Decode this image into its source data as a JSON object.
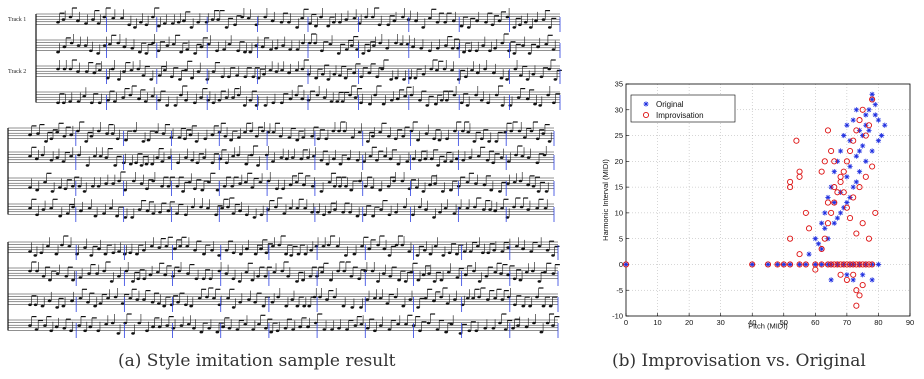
{
  "figure_a": {
    "caption": "(a) Style imitation sample result",
    "track_labels": [
      "Track 1",
      "Track 2"
    ]
  },
  "figure_b": {
    "caption": "(b) Improvisation vs. Original"
  },
  "chart_data": {
    "type": "scatter",
    "xlabel": "Pitch (MIDI)",
    "ylabel": "Harmonic Interval (MIDI)",
    "xlim": [
      0,
      90
    ],
    "ylim": [
      -10,
      35
    ],
    "xticks": [
      0,
      10,
      20,
      30,
      40,
      50,
      60,
      70,
      80,
      90
    ],
    "yticks": [
      -10,
      -5,
      0,
      5,
      10,
      15,
      20,
      25,
      30,
      35
    ],
    "grid": true,
    "legend_position": "top-left",
    "series": [
      {
        "name": "Original",
        "marker": "asterisk",
        "color": "#1f2fe0",
        "points": [
          [
            0,
            0
          ],
          [
            40,
            0
          ],
          [
            45,
            0
          ],
          [
            48,
            0
          ],
          [
            50,
            0
          ],
          [
            52,
            0
          ],
          [
            55,
            0
          ],
          [
            57,
            0
          ],
          [
            60,
            0
          ],
          [
            62,
            0
          ],
          [
            64,
            0
          ],
          [
            65,
            0
          ],
          [
            67,
            0
          ],
          [
            69,
            0
          ],
          [
            71,
            0
          ],
          [
            72,
            0
          ],
          [
            74,
            0
          ],
          [
            76,
            0
          ],
          [
            78,
            0
          ],
          [
            80,
            0
          ],
          [
            60,
            5
          ],
          [
            62,
            8
          ],
          [
            63,
            10
          ],
          [
            64,
            13
          ],
          [
            65,
            15
          ],
          [
            66,
            18
          ],
          [
            67,
            20
          ],
          [
            68,
            22
          ],
          [
            69,
            25
          ],
          [
            70,
            27
          ],
          [
            71,
            24
          ],
          [
            72,
            28
          ],
          [
            73,
            30
          ],
          [
            74,
            22
          ],
          [
            75,
            25
          ],
          [
            76,
            27
          ],
          [
            77,
            30
          ],
          [
            78,
            33
          ],
          [
            79,
            31
          ],
          [
            80,
            28
          ],
          [
            62,
            3
          ],
          [
            64,
            5
          ],
          [
            66,
            8
          ],
          [
            68,
            10
          ],
          [
            70,
            12
          ],
          [
            72,
            15
          ],
          [
            74,
            18
          ],
          [
            76,
            20
          ],
          [
            78,
            22
          ],
          [
            80,
            24
          ],
          [
            65,
            -3
          ],
          [
            70,
            -2
          ],
          [
            72,
            -3
          ],
          [
            75,
            -2
          ],
          [
            78,
            -3
          ],
          [
            66,
            12
          ],
          [
            68,
            14
          ],
          [
            70,
            17
          ],
          [
            71,
            19
          ],
          [
            73,
            21
          ],
          [
            75,
            23
          ],
          [
            77,
            26
          ],
          [
            79,
            29
          ],
          [
            81,
            25
          ],
          [
            82,
            27
          ],
          [
            58,
            2
          ],
          [
            61,
            4
          ],
          [
            63,
            7
          ],
          [
            67,
            9
          ],
          [
            69,
            11
          ],
          [
            71,
            13
          ],
          [
            73,
            16
          ],
          [
            74,
            26
          ],
          [
            76,
            29
          ],
          [
            78,
            32
          ]
        ]
      },
      {
        "name": "Improvisation",
        "marker": "circle",
        "color": "#dd1111",
        "points": [
          [
            0,
            0
          ],
          [
            40,
            0
          ],
          [
            45,
            0
          ],
          [
            48,
            0
          ],
          [
            50,
            0
          ],
          [
            52,
            0
          ],
          [
            55,
            0
          ],
          [
            57,
            0
          ],
          [
            60,
            0
          ],
          [
            62,
            0
          ],
          [
            64,
            0
          ],
          [
            65,
            0
          ],
          [
            66,
            0
          ],
          [
            67,
            0
          ],
          [
            68,
            0
          ],
          [
            69,
            0
          ],
          [
            70,
            0
          ],
          [
            71,
            0
          ],
          [
            72,
            0
          ],
          [
            73,
            0
          ],
          [
            74,
            0
          ],
          [
            75,
            0
          ],
          [
            76,
            0
          ],
          [
            77,
            0
          ],
          [
            78,
            0
          ],
          [
            54,
            24
          ],
          [
            52,
            16
          ],
          [
            55,
            18
          ],
          [
            55,
            17
          ],
          [
            52,
            15
          ],
          [
            52,
            5
          ],
          [
            55,
            2
          ],
          [
            57,
            10
          ],
          [
            58,
            7
          ],
          [
            60,
            -1
          ],
          [
            62,
            3
          ],
          [
            63,
            5
          ],
          [
            64,
            8
          ],
          [
            65,
            10
          ],
          [
            66,
            12
          ],
          [
            67,
            14
          ],
          [
            68,
            16
          ],
          [
            69,
            18
          ],
          [
            70,
            20
          ],
          [
            71,
            22
          ],
          [
            72,
            24
          ],
          [
            73,
            26
          ],
          [
            74,
            28
          ],
          [
            75,
            30
          ],
          [
            76,
            25
          ],
          [
            77,
            27
          ],
          [
            78,
            32
          ],
          [
            64,
            12
          ],
          [
            66,
            15
          ],
          [
            68,
            17
          ],
          [
            70,
            11
          ],
          [
            72,
            13
          ],
          [
            74,
            15
          ],
          [
            76,
            17
          ],
          [
            78,
            19
          ],
          [
            70,
            -3
          ],
          [
            72,
            -2
          ],
          [
            73,
            -5
          ],
          [
            74,
            -6
          ],
          [
            73,
            -8
          ],
          [
            68,
            -2
          ],
          [
            75,
            -4
          ],
          [
            62,
            18
          ],
          [
            63,
            20
          ],
          [
            65,
            22
          ],
          [
            66,
            20
          ],
          [
            69,
            14
          ],
          [
            71,
            9
          ],
          [
            73,
            6
          ],
          [
            75,
            8
          ],
          [
            77,
            5
          ],
          [
            79,
            10
          ],
          [
            64,
            26
          ]
        ]
      }
    ]
  }
}
